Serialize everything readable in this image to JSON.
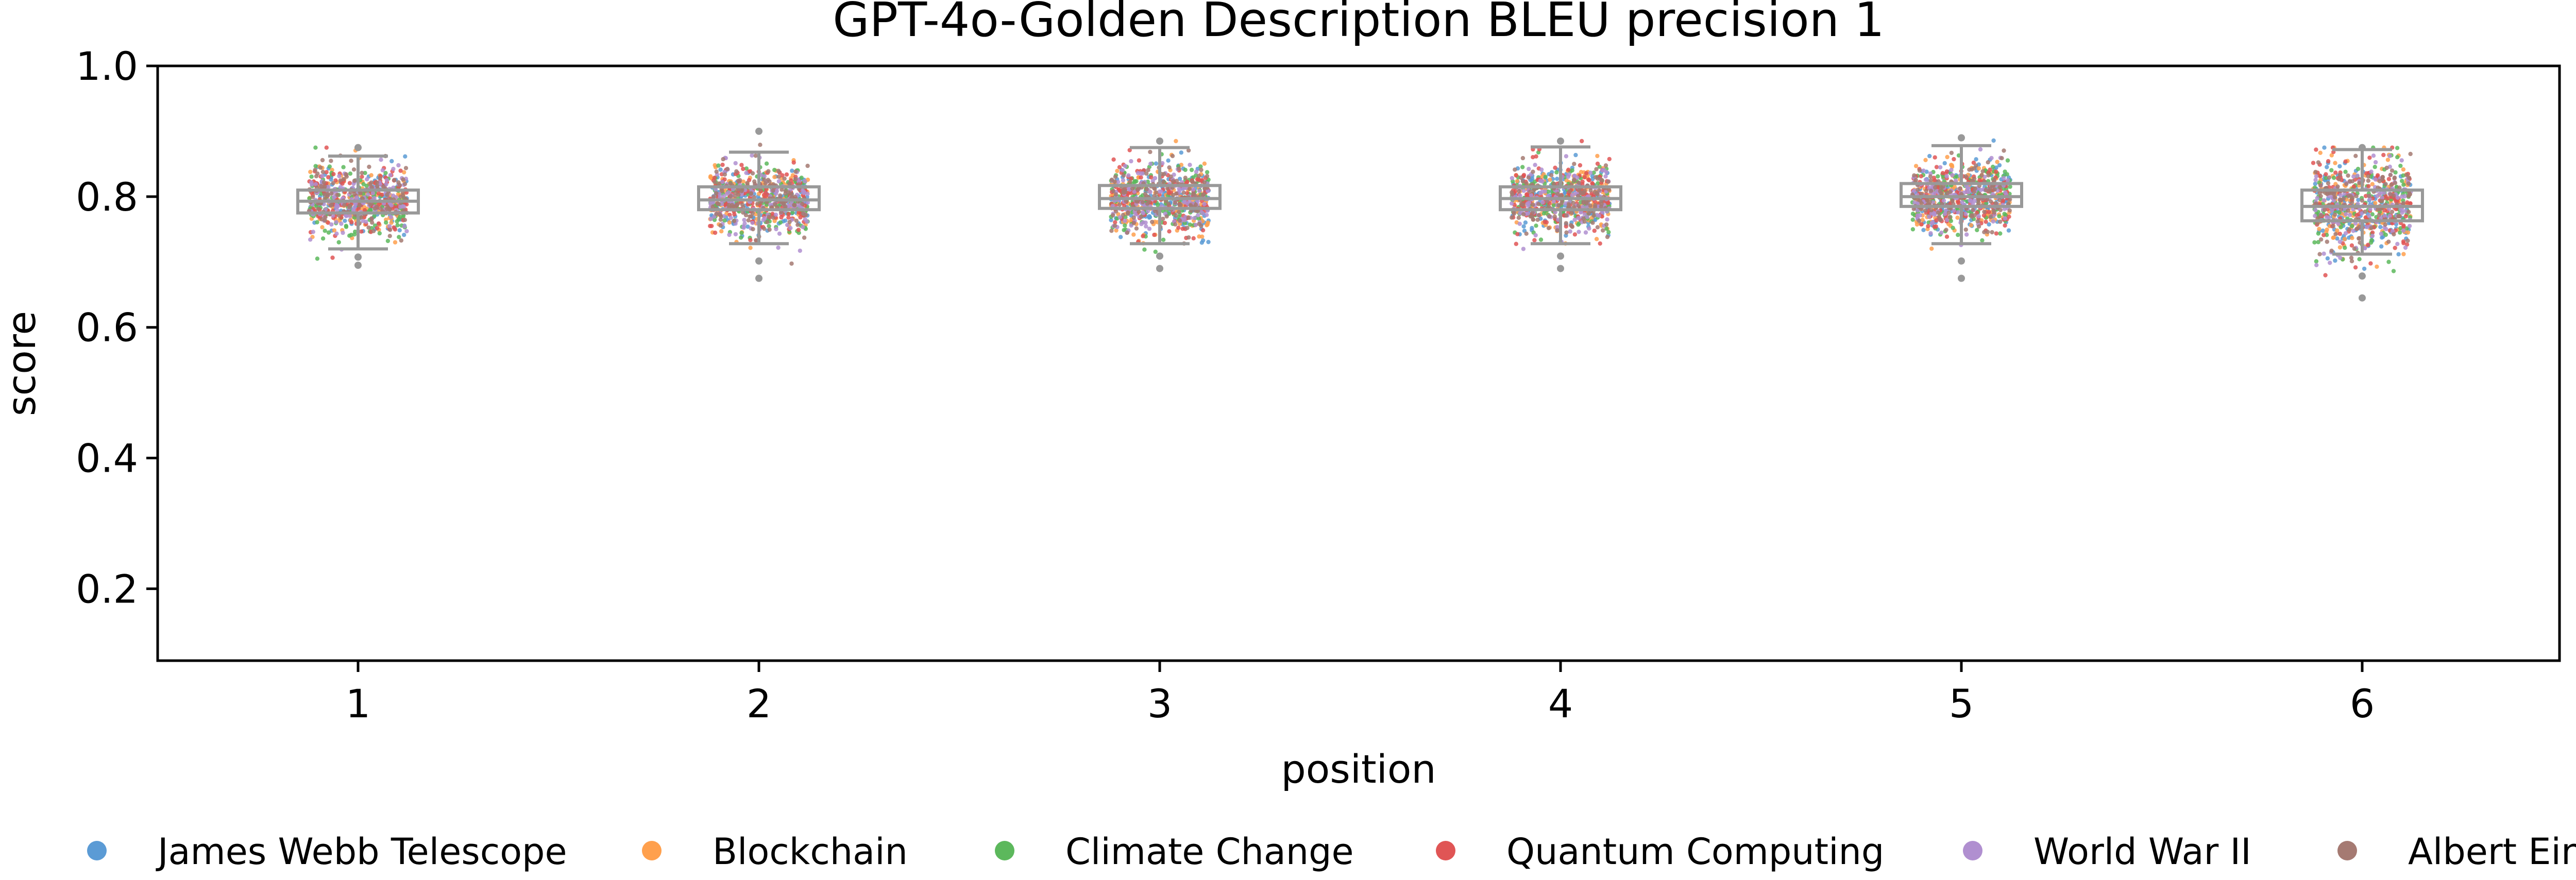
{
  "chart_data": {
    "type": "box",
    "title": "GPT-4o-Golden Description BLEU precision 1",
    "xlabel": "position",
    "ylabel": "score",
    "categories": [
      "1",
      "2",
      "3",
      "4",
      "5",
      "6"
    ],
    "yticks": [
      "0.2",
      "0.4",
      "0.6",
      "0.8",
      "1.0"
    ],
    "ylim": [
      0.09,
      1.0
    ],
    "grid": false,
    "legend_position": "bottom",
    "boxes": [
      {
        "position": "1",
        "whisker_low": 0.72,
        "q1": 0.775,
        "median": 0.793,
        "q3": 0.81,
        "whisker_high": 0.862,
        "min_point": 0.695,
        "max_point": 0.875
      },
      {
        "position": "2",
        "whisker_low": 0.728,
        "q1": 0.78,
        "median": 0.795,
        "q3": 0.815,
        "whisker_high": 0.868,
        "min_point": 0.675,
        "max_point": 0.9
      },
      {
        "position": "3",
        "whisker_low": 0.728,
        "q1": 0.782,
        "median": 0.797,
        "q3": 0.817,
        "whisker_high": 0.875,
        "min_point": 0.69,
        "max_point": 0.885
      },
      {
        "position": "4",
        "whisker_low": 0.728,
        "q1": 0.78,
        "median": 0.797,
        "q3": 0.815,
        "whisker_high": 0.876,
        "min_point": 0.69,
        "max_point": 0.885
      },
      {
        "position": "5",
        "whisker_low": 0.728,
        "q1": 0.785,
        "median": 0.8,
        "q3": 0.82,
        "whisker_high": 0.878,
        "min_point": 0.675,
        "max_point": 0.89
      },
      {
        "position": "6",
        "whisker_low": 0.712,
        "q1": 0.763,
        "median": 0.785,
        "q3": 0.81,
        "whisker_high": 0.872,
        "min_point": 0.645,
        "max_point": 0.875
      }
    ],
    "series": [
      {
        "name": "James Webb Telescope",
        "color": "#5b9bd5"
      },
      {
        "name": "Blockchain",
        "color": "#ffa04d"
      },
      {
        "name": "Climate Change",
        "color": "#5cb85c"
      },
      {
        "name": "Quantum Computing",
        "color": "#e05555"
      },
      {
        "name": "World War II",
        "color": "#b08fd0"
      },
      {
        "name": "Albert Einstein",
        "color": "#a57a72"
      }
    ],
    "box_color": "#999999"
  }
}
